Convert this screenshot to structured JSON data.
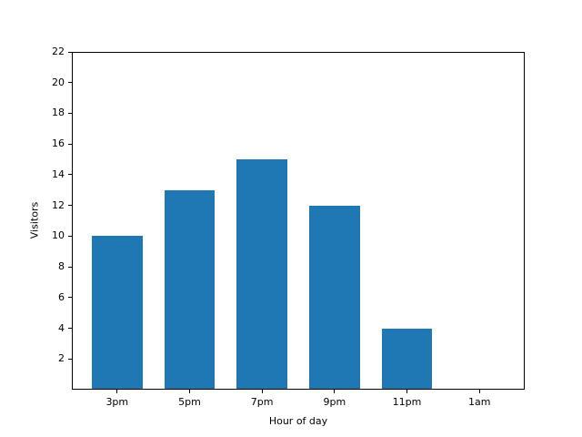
{
  "figure": {
    "background": "#ffffff",
    "text_color": "#000000",
    "axis_color": "#000000"
  },
  "chart_data": {
    "type": "bar",
    "title": "",
    "xlabel": "Hour of day",
    "ylabel": "Visitors",
    "categories": [
      "3pm",
      "5pm",
      "7pm",
      "9pm",
      "11pm",
      "1am"
    ],
    "values": [
      10,
      13,
      15,
      12,
      4,
      0
    ],
    "ylim": [
      0,
      22
    ],
    "yticks": [
      2,
      4,
      6,
      8,
      10,
      12,
      14,
      16,
      18,
      20,
      22
    ],
    "xlim": [
      -0.625,
      5.625
    ],
    "bar_width_units": 0.7,
    "bar_color": "#1f77b4",
    "grid": false,
    "legend": "none"
  }
}
